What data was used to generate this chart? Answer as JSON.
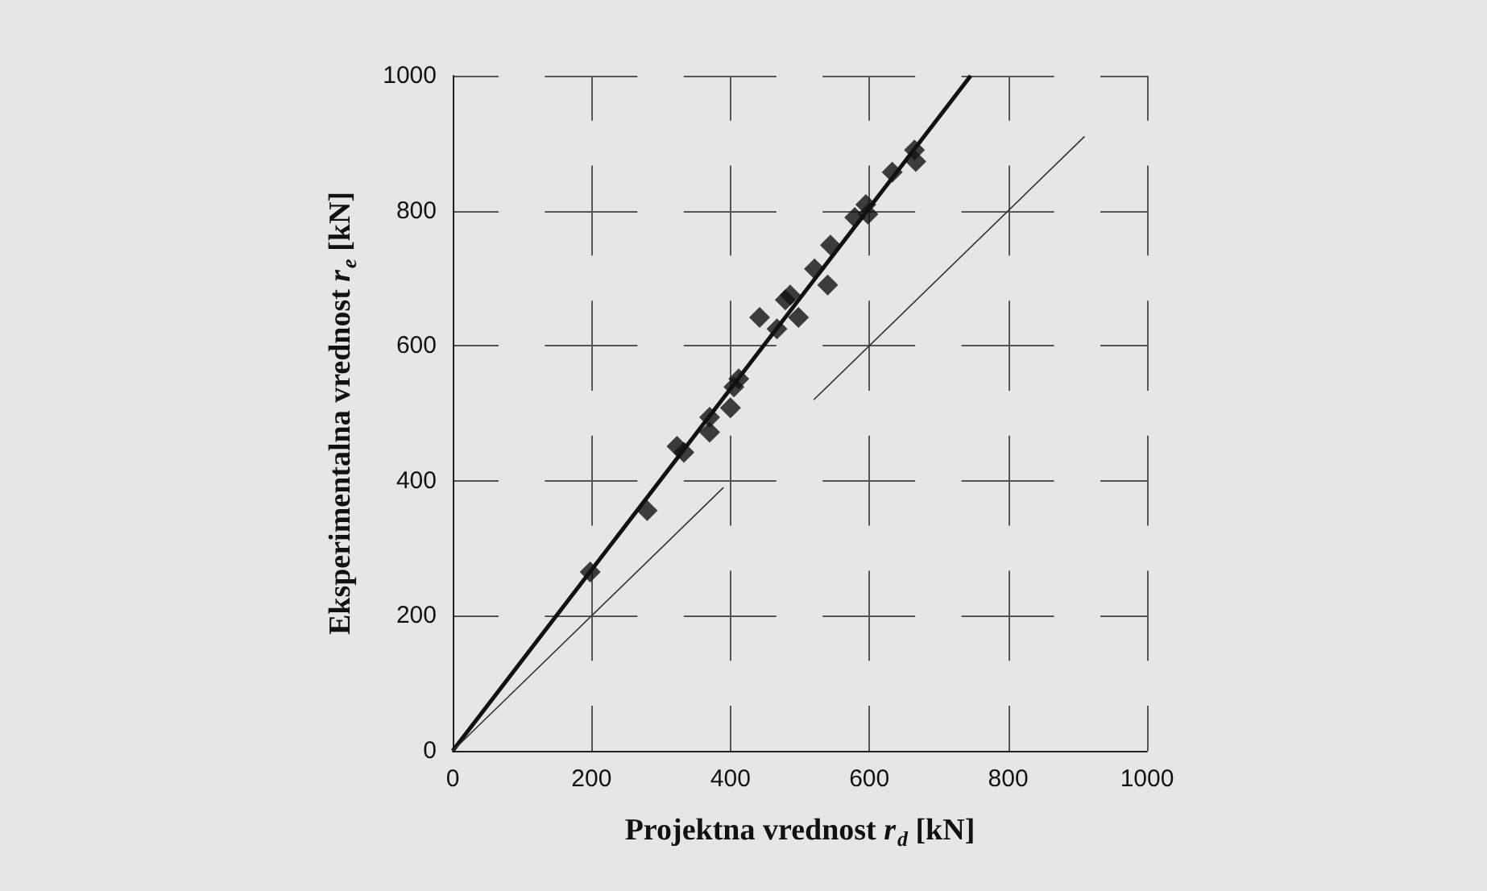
{
  "chart_data": {
    "type": "scatter",
    "xlabel": "Projektna vrednost r$_{d}$ [kN]",
    "ylabel": "Eksperimentalna vrednost r$_{e}$ [kN]",
    "xlim": [
      0,
      1000
    ],
    "xticks": [
      0,
      200,
      400,
      600,
      800,
      1000
    ],
    "ylim": [
      0,
      1000
    ],
    "yticks": [
      0,
      200,
      400,
      600,
      800,
      1000
    ],
    "grid": true,
    "marker": "diamond",
    "series": [
      {
        "color": "#111111",
        "x": [
          198,
          280,
          323,
          333,
          370,
          370,
          400,
          405,
          412,
          442,
          467,
          479,
          486,
          498,
          521,
          540,
          544,
          579,
          595,
          598,
          633,
          665,
          667
        ],
        "values": [
          265,
          356,
          451,
          442,
          494,
          472,
          508,
          539,
          551,
          642,
          625,
          668,
          675,
          642,
          714,
          690,
          749,
          790,
          809,
          795,
          857,
          890,
          873
        ]
      },
      {
        "type": "line",
        "color": "#111111",
        "marker": "none",
        "line_style": "solid",
        "x": [
          0,
          746
        ],
        "values": [
          0,
          1000
        ]
      },
      {
        "type": "line",
        "color": "#333333",
        "marker": "none",
        "line_style": "solid",
        "x": [
          0,
          390,
          455,
          520,
          910
        ],
        "values": [
          0,
          390,
          null,
          520,
          910
        ]
      }
    ]
  }
}
